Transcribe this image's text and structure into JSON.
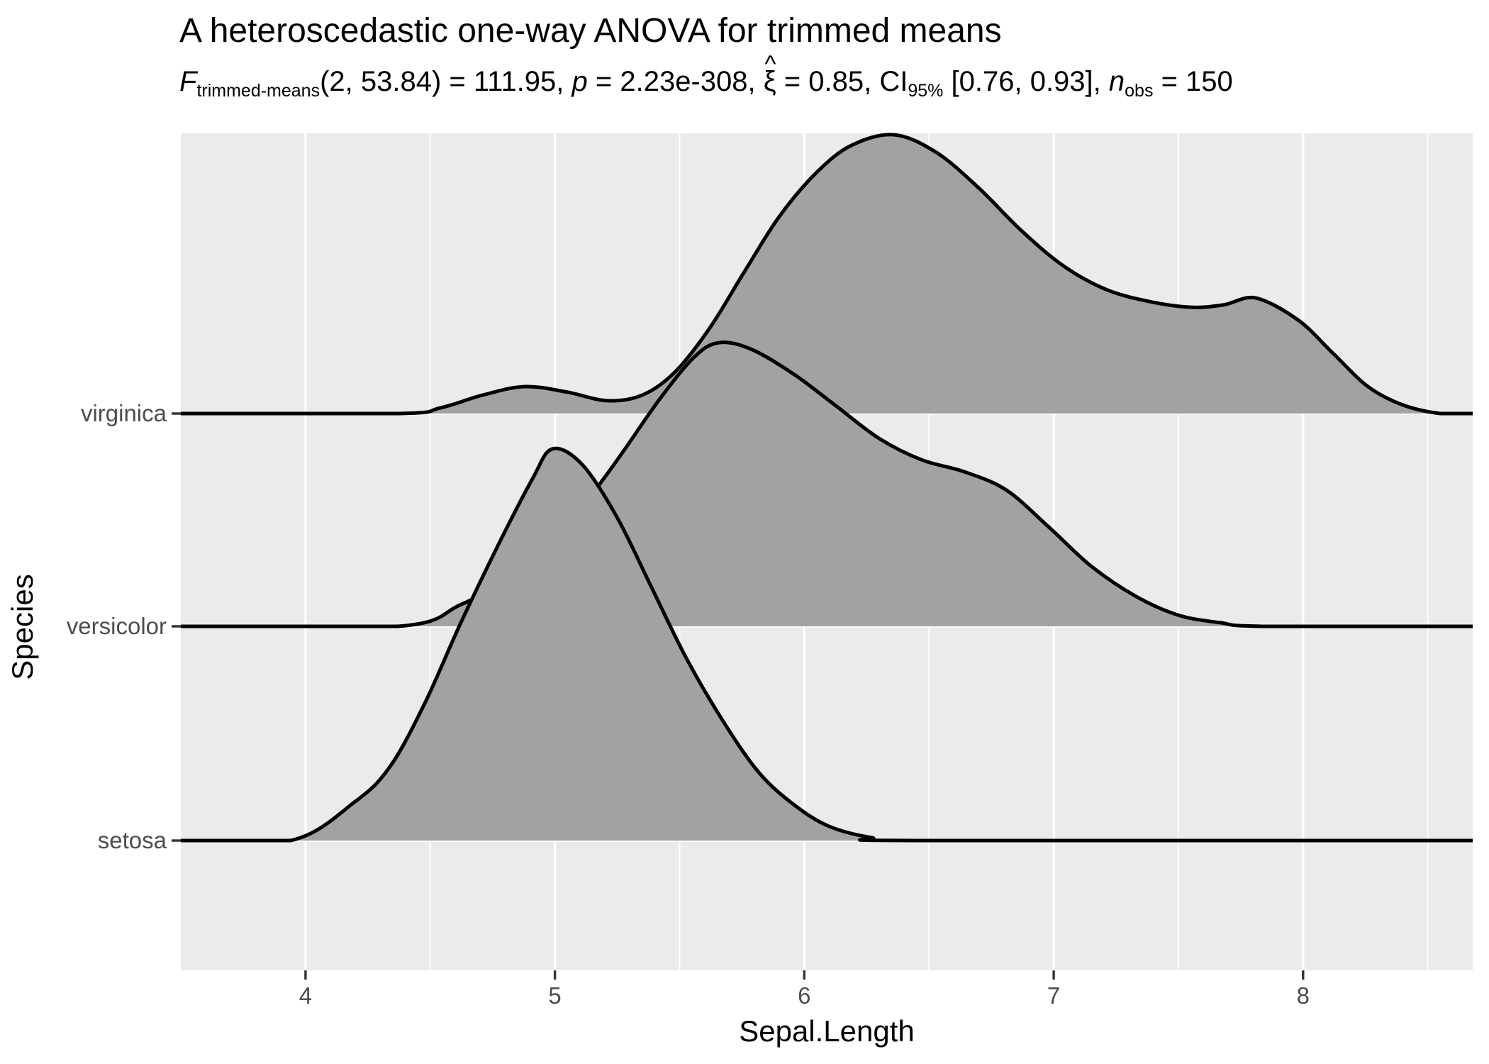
{
  "title": "A heteroscedastic one-way ANOVA for trimmed means",
  "subtitle": {
    "segments": [
      {
        "t": "F",
        "s": "i"
      },
      {
        "t": "trimmed-means",
        "s": "sub"
      },
      {
        "t": "(2, 53.84) = 111.95, ",
        "s": "r"
      },
      {
        "t": "p",
        "s": "i"
      },
      {
        "t": " = 2.23e-308, ",
        "s": "r"
      },
      {
        "t": "ξ",
        "s": "hat",
        "mark": "^"
      },
      {
        "t": " = 0.85, CI",
        "s": "r"
      },
      {
        "t": "95%",
        "s": "sub"
      },
      {
        "t": " [0.76, 0.93], ",
        "s": "r"
      },
      {
        "t": "n",
        "s": "i"
      },
      {
        "t": "obs",
        "s": "sub"
      },
      {
        "t": " = 150",
        "s": "r"
      }
    ]
  },
  "chart_data": {
    "type": "area",
    "subtype": "ridgeline-density",
    "title": "A heteroscedastic one-way ANOVA for trimmed means",
    "xlabel": "Sepal.Length",
    "ylabel": "Species",
    "x_domain": [
      3.5,
      8.68
    ],
    "x_ticks": [
      4,
      5,
      6,
      7,
      8
    ],
    "x_minor_ticks": [
      4.5,
      5.5,
      6.5,
      7.5,
      8.5
    ],
    "categories": [
      "setosa",
      "versicolor",
      "virginica"
    ],
    "grid": true,
    "legend": false,
    "n_obs": 150,
    "series": [
      {
        "name": "virginica",
        "points": [
          [
            3.5,
            0
          ],
          [
            4.37,
            0
          ],
          [
            4.54,
            0.017
          ],
          [
            4.71,
            0.056
          ],
          [
            4.88,
            0.082
          ],
          [
            5.05,
            0.065
          ],
          [
            5.21,
            0.039
          ],
          [
            5.35,
            0.056
          ],
          [
            5.48,
            0.125
          ],
          [
            5.62,
            0.259
          ],
          [
            5.76,
            0.431
          ],
          [
            5.9,
            0.599
          ],
          [
            6.05,
            0.733
          ],
          [
            6.19,
            0.815
          ],
          [
            6.36,
            0.847
          ],
          [
            6.53,
            0.793
          ],
          [
            6.7,
            0.685
          ],
          [
            6.87,
            0.556
          ],
          [
            7.04,
            0.448
          ],
          [
            7.21,
            0.377
          ],
          [
            7.38,
            0.341
          ],
          [
            7.55,
            0.323
          ],
          [
            7.68,
            0.33
          ],
          [
            7.81,
            0.351
          ],
          [
            7.98,
            0.284
          ],
          [
            8.12,
            0.183
          ],
          [
            8.26,
            0.082
          ],
          [
            8.4,
            0.026
          ],
          [
            8.55,
            0
          ],
          [
            8.68,
            0
          ]
        ]
      },
      {
        "name": "versicolor",
        "points": [
          [
            3.5,
            0
          ],
          [
            4.37,
            0
          ],
          [
            4.62,
            0.065
          ],
          [
            4.82,
            0.151
          ],
          [
            5.02,
            0.28
          ],
          [
            5.22,
            0.474
          ],
          [
            5.42,
            0.69
          ],
          [
            5.56,
            0.819
          ],
          [
            5.66,
            0.862
          ],
          [
            5.79,
            0.841
          ],
          [
            5.96,
            0.765
          ],
          [
            6.13,
            0.668
          ],
          [
            6.3,
            0.571
          ],
          [
            6.47,
            0.506
          ],
          [
            6.64,
            0.47
          ],
          [
            6.81,
            0.414
          ],
          [
            6.98,
            0.302
          ],
          [
            7.15,
            0.183
          ],
          [
            7.33,
            0.091
          ],
          [
            7.5,
            0.034
          ],
          [
            7.67,
            0.011
          ],
          [
            7.84,
            0
          ],
          [
            8.68,
            0
          ]
        ]
      },
      {
        "name": "setosa",
        "points": [
          [
            3.5,
            0
          ],
          [
            3.94,
            0
          ],
          [
            4.2,
            0.119
          ],
          [
            4.34,
            0.226
          ],
          [
            4.48,
            0.42
          ],
          [
            4.62,
            0.657
          ],
          [
            4.77,
            0.894
          ],
          [
            4.91,
            1.099
          ],
          [
            4.99,
            1.19
          ],
          [
            5.11,
            1.142
          ],
          [
            5.25,
            0.981
          ],
          [
            5.39,
            0.765
          ],
          [
            5.53,
            0.55
          ],
          [
            5.68,
            0.356
          ],
          [
            5.82,
            0.205
          ],
          [
            5.96,
            0.108
          ],
          [
            6.1,
            0.043
          ],
          [
            6.27,
            0.009
          ],
          [
            6.44,
            0
          ],
          [
            8.68,
            0
          ]
        ]
      }
    ],
    "colors": {
      "panel_bg": "#EBEBEB",
      "gridline": "#FFFFFF",
      "ridge_fill": "#A2A2A2",
      "ridge_stroke": "#000000",
      "tick_mark": "#333333",
      "tick_label": "#4D4D4D",
      "text": "#000000"
    }
  }
}
